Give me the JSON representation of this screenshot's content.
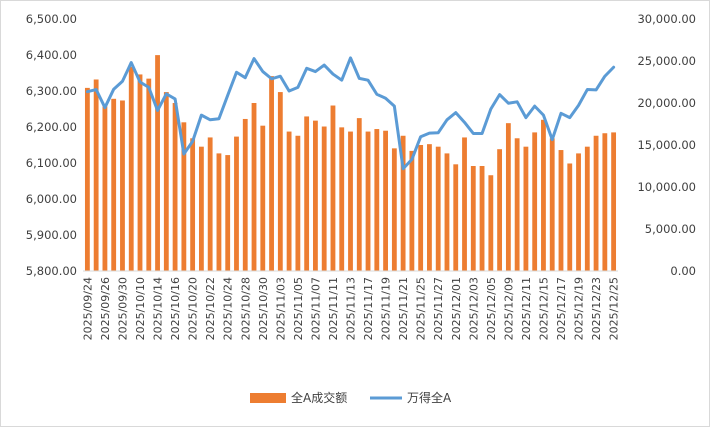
{
  "chart_data": {
    "type": "bar+line",
    "categories": [
      "2025/09/24",
      "2025/09/25",
      "2025/09/26",
      "2025/09/29",
      "2025/09/30",
      "2025/10/09",
      "2025/10/10",
      "2025/10/13",
      "2025/10/14",
      "2025/10/15",
      "2025/10/16",
      "2025/10/17",
      "2025/10/20",
      "2025/10/21",
      "2025/10/22",
      "2025/10/23",
      "2025/10/24",
      "2025/10/27",
      "2025/10/28",
      "2025/10/29",
      "2025/10/30",
      "2025/10/31",
      "2025/11/03",
      "2025/11/04",
      "2025/11/05",
      "2025/11/06",
      "2025/11/07",
      "2025/11/10",
      "2025/11/11",
      "2025/11/12",
      "2025/11/13",
      "2025/11/14",
      "2025/11/17",
      "2025/11/18",
      "2025/11/19",
      "2025/11/20",
      "2025/11/21",
      "2025/11/24",
      "2025/11/25",
      "2025/11/26",
      "2025/11/27",
      "2025/11/28",
      "2025/12/01",
      "2025/12/02",
      "2025/12/03",
      "2025/12/04",
      "2025/12/05",
      "2025/12/08",
      "2025/12/09",
      "2025/12/10",
      "2025/12/11",
      "2025/12/12",
      "2025/12/15",
      "2025/12/16",
      "2025/12/17",
      "2025/12/18",
      "2025/12/19",
      "2025/12/22",
      "2025/12/23",
      "2025/12/24",
      "2025/12/25"
    ],
    "x_tick_labels": [
      "2025/09/24",
      "2025/09/26",
      "2025/09/30",
      "2025/10/10",
      "2025/10/14",
      "2025/10/16",
      "2025/10/20",
      "2025/10/22",
      "2025/10/24",
      "2025/10/28",
      "2025/10/30",
      "2025/11/03",
      "2025/11/05",
      "2025/11/07",
      "2025/11/11",
      "2025/11/13",
      "2025/11/17",
      "2025/11/19",
      "2025/11/21",
      "2025/11/25",
      "2025/11/27",
      "2025/12/01",
      "2025/12/03",
      "2025/12/05",
      "2025/12/09",
      "2025/12/11",
      "2025/12/15",
      "2025/12/17",
      "2025/12/19",
      "2025/12/23",
      "2025/12/25"
    ],
    "series": [
      {
        "name": "全A成交额",
        "type": "bar",
        "axis": "right",
        "color": "#ED7D31",
        "values": [
          21800,
          22800,
          19600,
          20500,
          20300,
          24300,
          23400,
          22900,
          25700,
          21300,
          20000,
          17700,
          15800,
          14800,
          15900,
          14000,
          13800,
          16000,
          18100,
          20000,
          17300,
          23200,
          21300,
          16600,
          16100,
          18400,
          17900,
          17200,
          19700,
          17100,
          16600,
          18200,
          16600,
          16900,
          16700,
          14600,
          16100,
          14300,
          15000,
          15100,
          14800,
          14000,
          12700,
          15900,
          12500,
          12500,
          11400,
          14500,
          17600,
          15800,
          14800,
          16500,
          18000,
          15800,
          14400,
          12800,
          14000,
          14800,
          16100,
          16400,
          16500
        ]
      },
      {
        "name": "万得全A",
        "type": "line",
        "axis": "left",
        "color": "#5B9BD5",
        "values": [
          6298,
          6304,
          6254,
          6305,
          6327,
          6379,
          6325,
          6310,
          6246,
          6292,
          6278,
          6125,
          6160,
          6233,
          6220,
          6223,
          6288,
          6352,
          6337,
          6390,
          6354,
          6334,
          6341,
          6300,
          6310,
          6363,
          6354,
          6372,
          6347,
          6330,
          6392,
          6335,
          6330,
          6291,
          6280,
          6258,
          6084,
          6110,
          6173,
          6183,
          6184,
          6220,
          6240,
          6213,
          6182,
          6182,
          6250,
          6290,
          6266,
          6270,
          6226,
          6258,
          6233,
          6165,
          6238,
          6226,
          6260,
          6304,
          6303,
          6341,
          6366
        ]
      }
    ],
    "y_left": {
      "min": 5800,
      "max": 6500,
      "ticks": [
        "5,800.00",
        "5,900.00",
        "6,000.00",
        "6,100.00",
        "6,200.00",
        "6,300.00",
        "6,400.00",
        "6,500.00"
      ]
    },
    "y_right": {
      "min": 0,
      "max": 30000,
      "ticks": [
        "0.00",
        "5,000.00",
        "10,000.00",
        "15,000.00",
        "20,000.00",
        "25,000.00",
        "30,000.00"
      ]
    },
    "grid": false,
    "legend": "bottom"
  }
}
